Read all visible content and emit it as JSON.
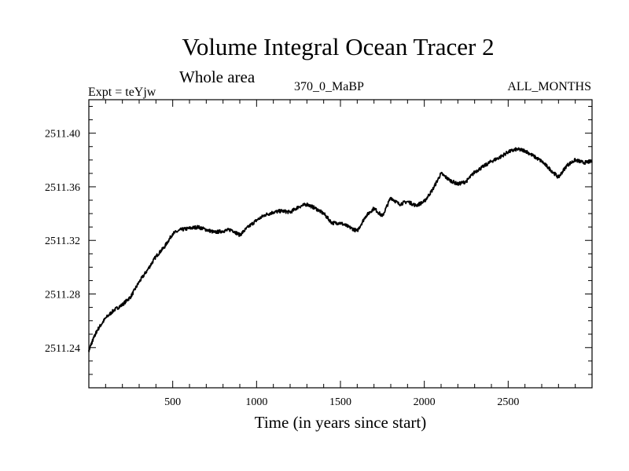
{
  "header": {
    "title": "Volume Integral Ocean Tracer 2",
    "subtitle": "Whole area",
    "experiment": "Expt = teYjw",
    "period": "370_0_MaBP",
    "months": "ALL_MONTHS"
  },
  "chart_data": {
    "type": "line",
    "title": "Volume Integral Ocean Tracer 2",
    "subtitle": "Whole area",
    "xlabel": "Time (in years since start)",
    "ylabel": "",
    "xlim": [
      0,
      3000
    ],
    "ylim": [
      2511.21,
      2511.425
    ],
    "x_ticks": [
      500,
      1000,
      1500,
      2000,
      2500
    ],
    "x_tick_labels": [
      "500",
      "1000",
      "1500",
      "2000",
      "2500"
    ],
    "y_ticks": [
      2511.24,
      2511.28,
      2511.32,
      2511.36,
      2511.4
    ],
    "y_tick_labels": [
      "2511.24",
      "2511.28",
      "2511.32",
      "2511.36",
      "2511.40"
    ],
    "grid": false,
    "series": [
      {
        "color": "#000000",
        "x": [
          0,
          25,
          50,
          100,
          150,
          200,
          250,
          300,
          350,
          400,
          450,
          500,
          550,
          600,
          650,
          700,
          750,
          800,
          850,
          900,
          950,
          1000,
          1050,
          1100,
          1150,
          1200,
          1250,
          1300,
          1350,
          1400,
          1450,
          1500,
          1550,
          1600,
          1650,
          1700,
          1750,
          1800,
          1850,
          1900,
          1950,
          2000,
          2050,
          2100,
          2150,
          2200,
          2250,
          2300,
          2350,
          2400,
          2450,
          2500,
          2550,
          2600,
          2650,
          2700,
          2750,
          2800,
          2850,
          2900,
          2950,
          3000
        ],
        "values": [
          2511.238,
          2511.246,
          2511.253,
          2511.262,
          2511.268,
          2511.272,
          2511.278,
          2511.289,
          2511.298,
          2511.308,
          2511.315,
          2511.325,
          2511.328,
          2511.329,
          2511.33,
          2511.328,
          2511.326,
          2511.327,
          2511.328,
          2511.324,
          2511.33,
          2511.335,
          2511.339,
          2511.341,
          2511.342,
          2511.341,
          2511.345,
          2511.347,
          2511.344,
          2511.34,
          2511.333,
          2511.333,
          2511.33,
          2511.327,
          2511.338,
          2511.344,
          2511.338,
          2511.352,
          2511.347,
          2511.349,
          2511.346,
          2511.349,
          2511.358,
          2511.37,
          2511.365,
          2511.362,
          2511.364,
          2511.371,
          2511.375,
          2511.379,
          2511.382,
          2511.386,
          2511.388,
          2511.387,
          2511.383,
          2511.379,
          2511.373,
          2511.367,
          2511.376,
          2511.38,
          2511.378,
          2511.379
        ]
      }
    ]
  }
}
